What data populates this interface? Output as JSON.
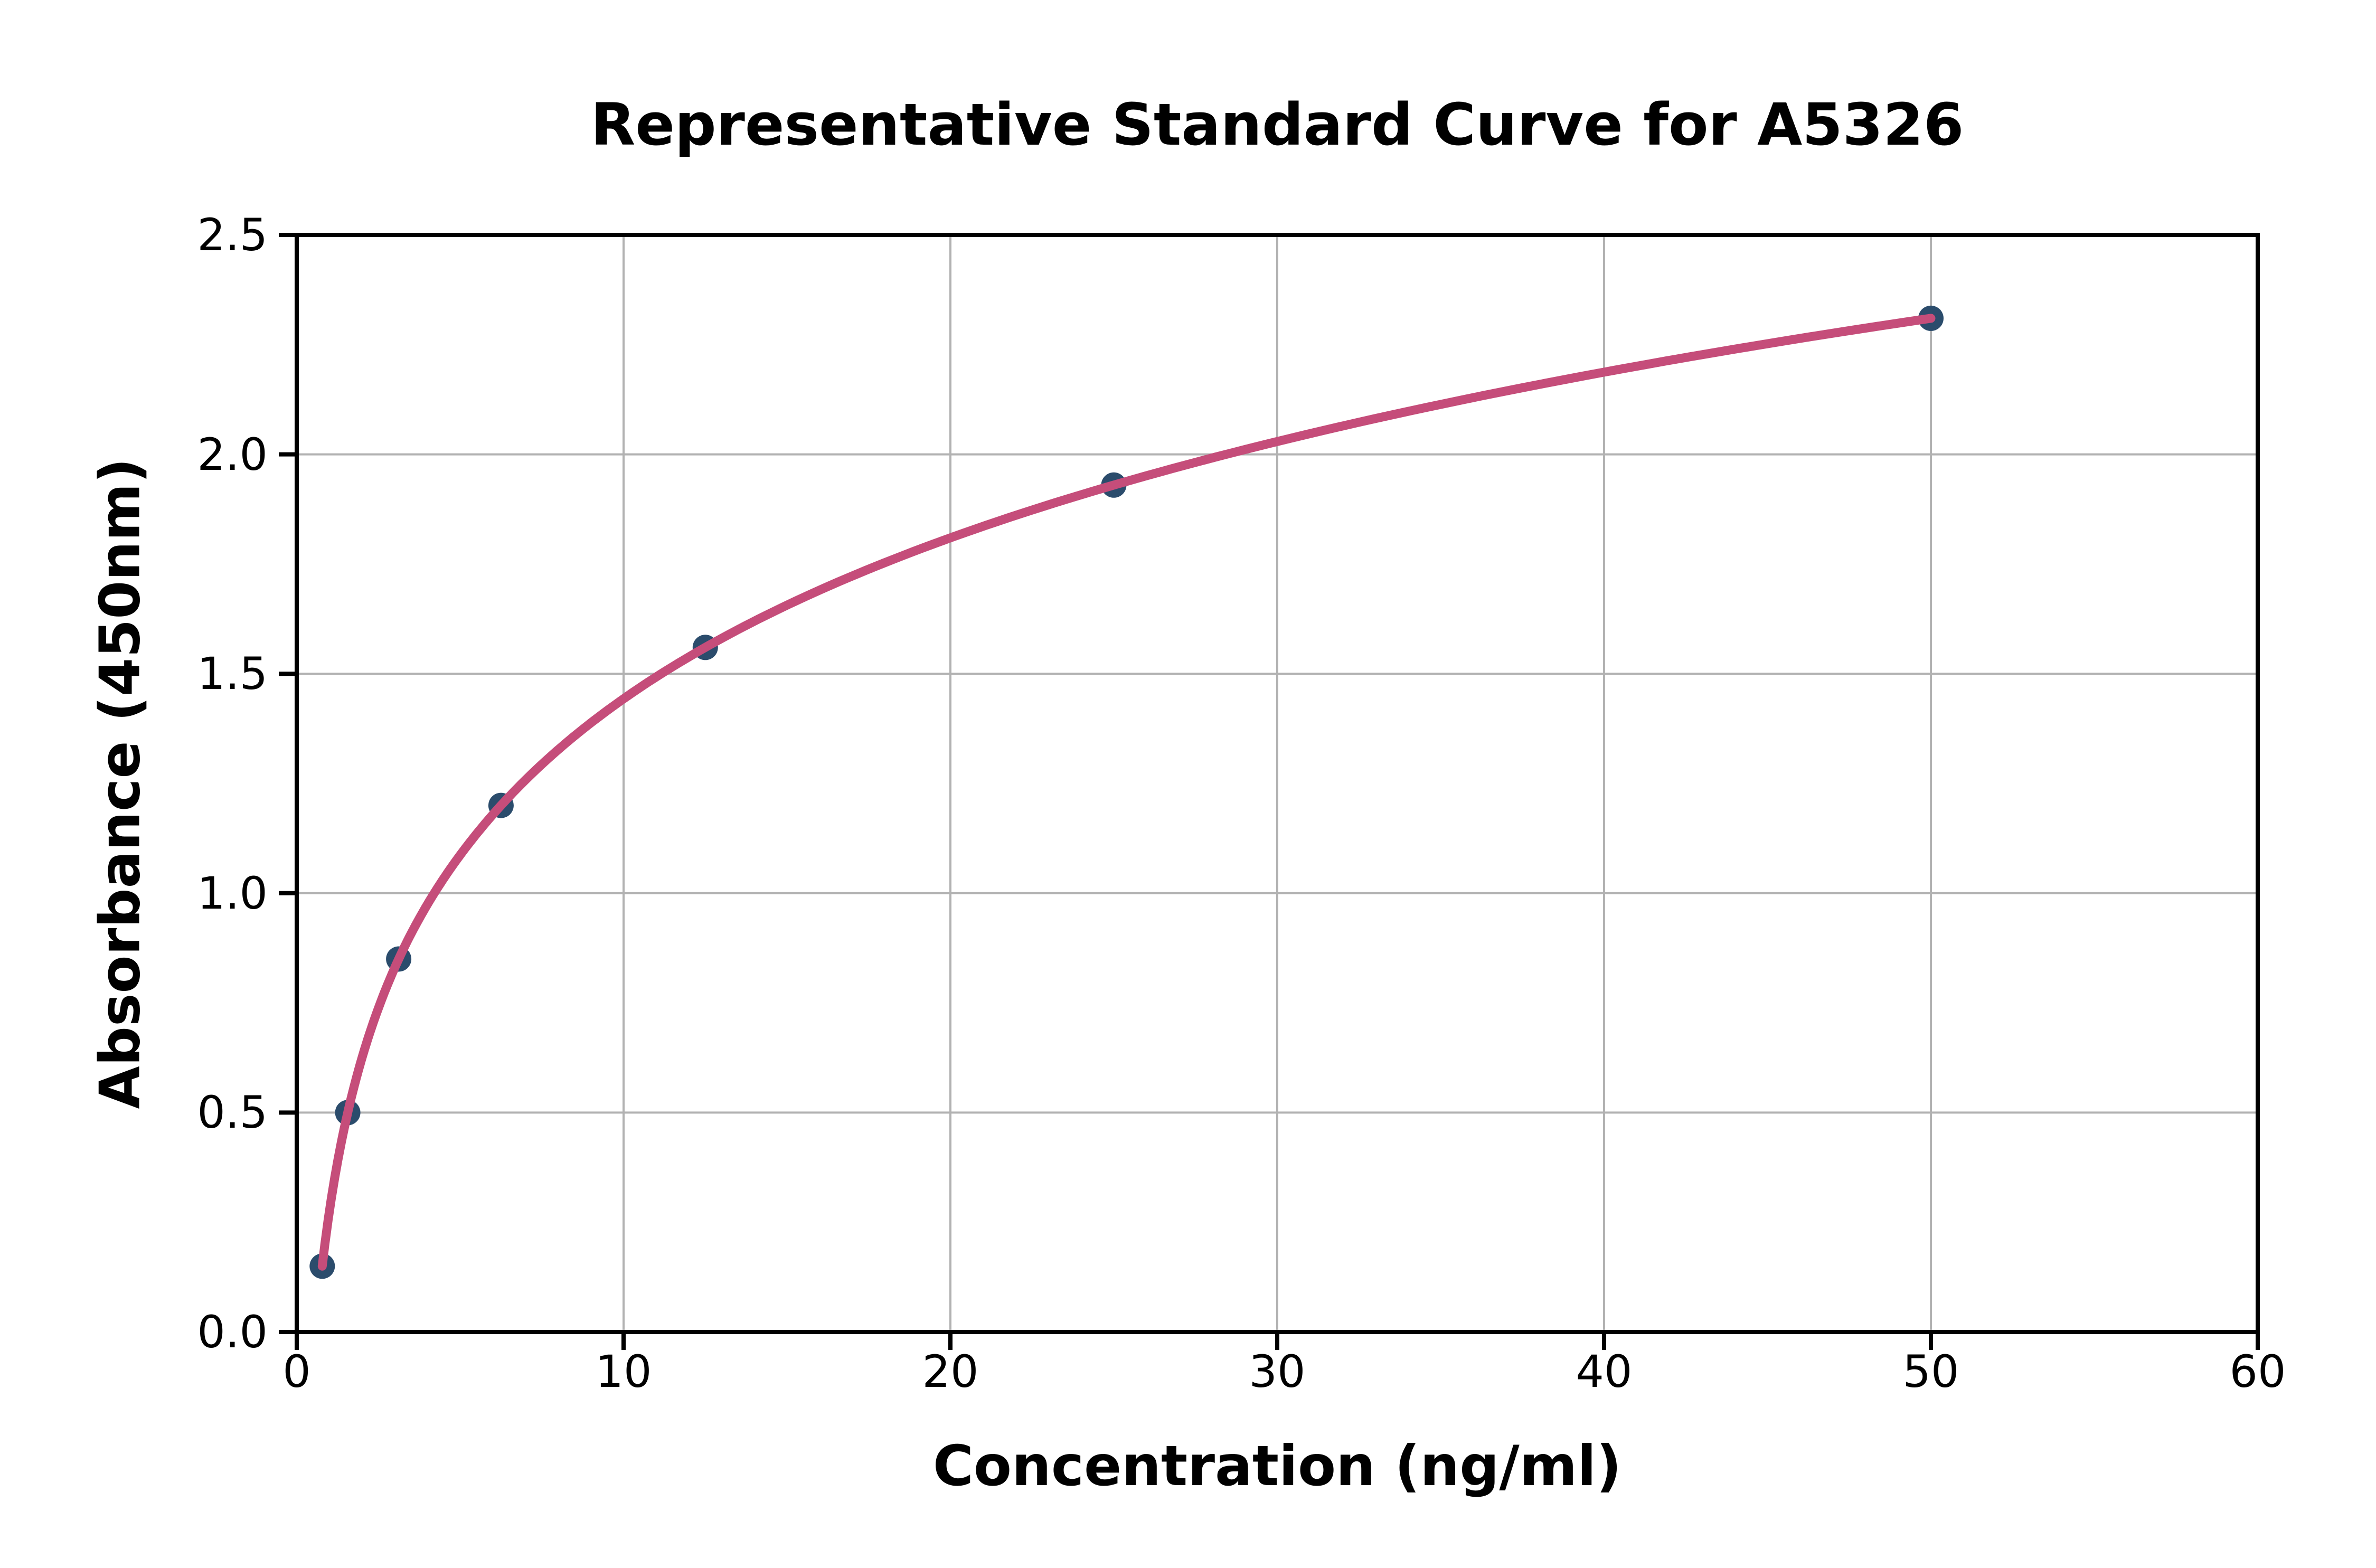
{
  "chart_data": {
    "type": "scatter",
    "title": "Representative Standard Curve for A5326",
    "xlabel": "Concentration (ng/ml)",
    "ylabel": "Absorbance (450nm)",
    "series": [
      {
        "name": "standard-points",
        "x": [
          0.78,
          1.56,
          3.12,
          6.25,
          12.5,
          25,
          50
        ],
        "y": [
          0.15,
          0.5,
          0.85,
          1.2,
          1.56,
          1.93,
          2.31
        ]
      }
    ],
    "fit_curve_through_points": true,
    "xlim": [
      0,
      60
    ],
    "ylim": [
      0,
      2.5
    ],
    "xticks": [
      "0",
      "10",
      "20",
      "30",
      "40",
      "50",
      "60"
    ],
    "yticks": [
      "0.0",
      "0.5",
      "1.0",
      "1.5",
      "2.0",
      "2.5"
    ],
    "grid": true,
    "legend_position": "none",
    "colors": {
      "curve": "#c54d7a",
      "marker": "#2b4c6c",
      "grid": "#b2b2b2",
      "axis": "#000000",
      "text": "#000000",
      "background": "#ffffff"
    }
  }
}
